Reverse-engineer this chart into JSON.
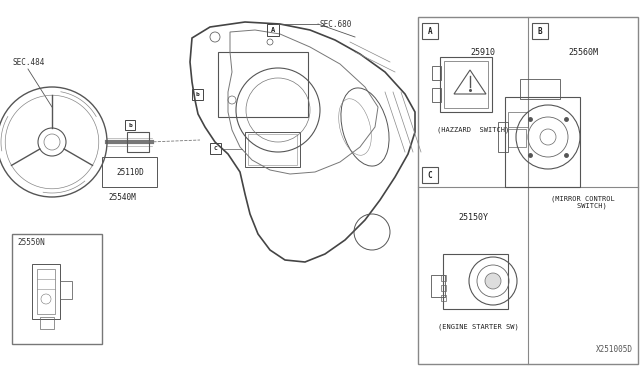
{
  "bg_color": "#ffffff",
  "fig_width": 6.4,
  "fig_height": 3.72,
  "dpi": 100,
  "diagram_id": "X251005D",
  "line_color": "#555555",
  "text_color": "#222222",
  "font_family": "monospace",
  "panel": {
    "gl": 0.652,
    "gr": 0.998,
    "gt": 0.978,
    "gb": 0.022,
    "gmx": 0.825,
    "gmy": 0.5
  },
  "parts_A": {
    "num": "25910",
    "label": "(HAZZARD  SWITCH)"
  },
  "parts_B": {
    "num": "25560M",
    "label": "(MIRROR CONTROL\n    SWITCH)"
  },
  "parts_C": {
    "num": "25150Y",
    "label": "(ENGINE STARTER SW)"
  },
  "labels": {
    "sec484": "SEC.484",
    "sec680": "SEC.680",
    "p25110D": "25110D",
    "p25540M": "25540M",
    "p25550N": "25550N"
  }
}
